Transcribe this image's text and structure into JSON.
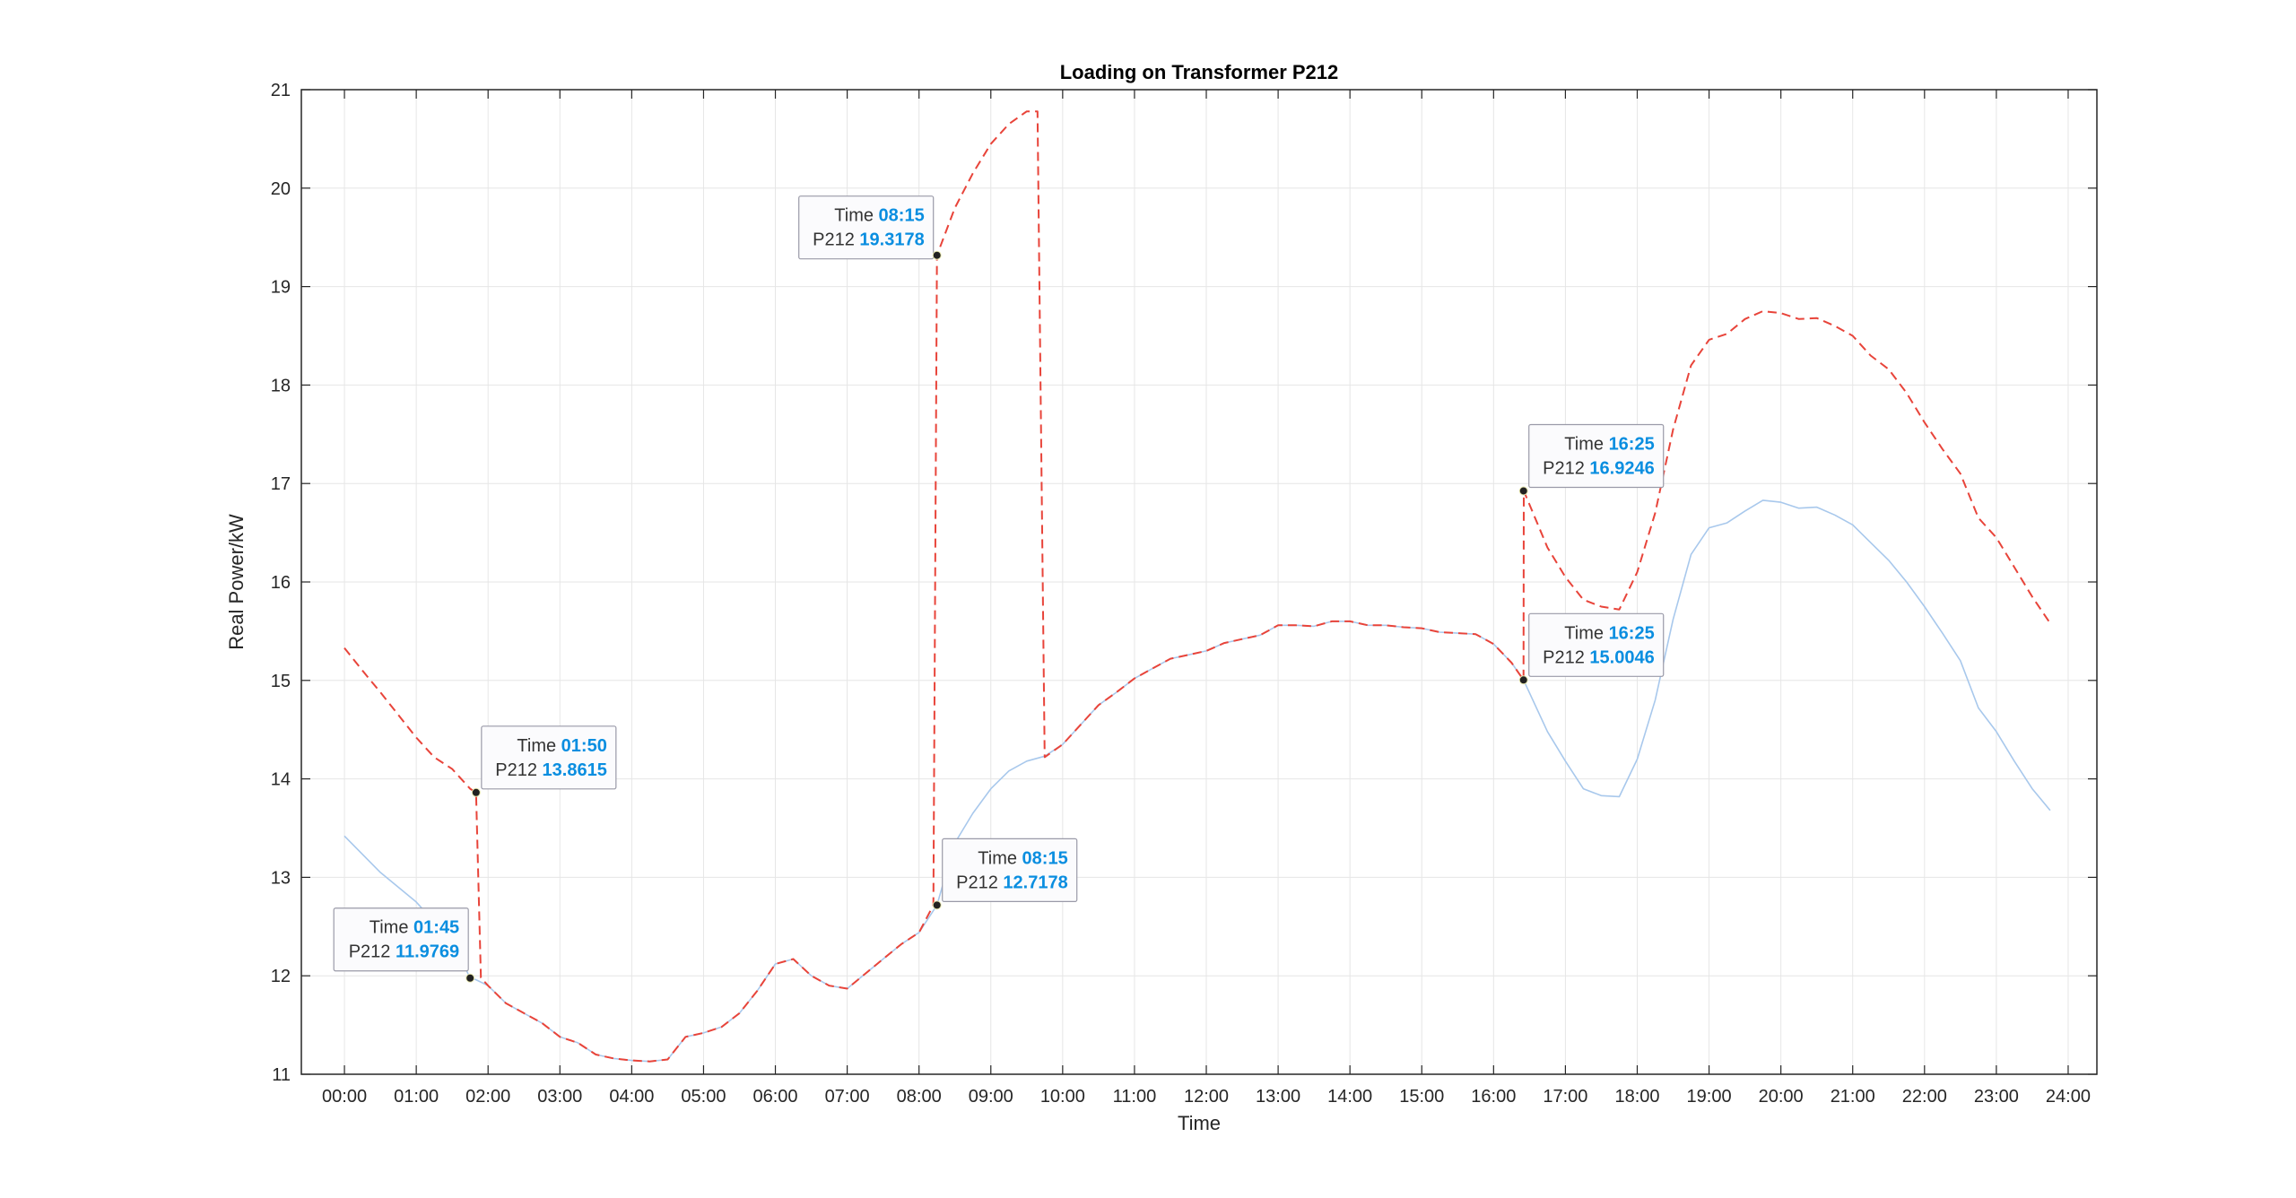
{
  "chart_data": {
    "type": "line",
    "title": "Loading on Transformer P212",
    "xlabel": "Time",
    "ylabel": "Real Power/kW",
    "xlim": [
      -0.6,
      24.4
    ],
    "ylim": [
      11,
      21
    ],
    "x_ticks": [
      0,
      1,
      2,
      3,
      4,
      5,
      6,
      7,
      8,
      9,
      10,
      11,
      12,
      13,
      14,
      15,
      16,
      17,
      18,
      19,
      20,
      21,
      22,
      23,
      24
    ],
    "x_tick_labels": [
      "00:00",
      "01:00",
      "02:00",
      "03:00",
      "04:00",
      "05:00",
      "06:00",
      "07:00",
      "08:00",
      "09:00",
      "10:00",
      "11:00",
      "12:00",
      "13:00",
      "14:00",
      "15:00",
      "16:00",
      "17:00",
      "18:00",
      "19:00",
      "20:00",
      "21:00",
      "22:00",
      "23:00",
      "24:00"
    ],
    "y_ticks": [
      11,
      12,
      13,
      14,
      15,
      16,
      17,
      18,
      19,
      20,
      21
    ],
    "y_tick_labels": [
      "11",
      "12",
      "13",
      "14",
      "15",
      "16",
      "17",
      "18",
      "19",
      "20",
      "21"
    ],
    "grid": true,
    "colors": {
      "base": "#a8c8ec",
      "modified": "#e8443a",
      "tip_value": "#0a8ee0",
      "axis": "#262626",
      "grid": "#e6e6e6"
    },
    "series": [
      {
        "style": "solid",
        "color": "#a8c8ec",
        "x": [
          0,
          0.5,
          1,
          1.5,
          1.75,
          1.833,
          2,
          2.25,
          2.5,
          2.75,
          3,
          3.25,
          3.5,
          3.75,
          4,
          4.25,
          4.5,
          4.75,
          5,
          5.25,
          5.5,
          5.75,
          6,
          6.25,
          6.5,
          6.75,
          7,
          7.25,
          7.5,
          7.75,
          8,
          8.25,
          8.5,
          8.75,
          9,
          9.25,
          9.5,
          9.75,
          10,
          10.25,
          10.5,
          10.75,
          11,
          11.25,
          11.5,
          11.75,
          12,
          12.25,
          12.5,
          12.75,
          13,
          13.25,
          13.5,
          13.75,
          14,
          14.25,
          14.5,
          14.75,
          15,
          15.25,
          15.5,
          15.75,
          16,
          16.25,
          16.417,
          16.75,
          17,
          17.25,
          17.5,
          17.75,
          18,
          18.25,
          18.5,
          18.75,
          19,
          19.25,
          19.5,
          19.75,
          20,
          20.25,
          20.5,
          20.75,
          21,
          21.25,
          21.5,
          21.75,
          22,
          22.25,
          22.5,
          22.75,
          23,
          23.25,
          23.5,
          23.75
        ],
        "y": [
          13.42,
          13.05,
          12.75,
          12.35,
          11.9769,
          11.96,
          11.9,
          11.72,
          11.62,
          11.52,
          11.38,
          11.32,
          11.2,
          11.16,
          11.14,
          11.13,
          11.15,
          11.38,
          11.42,
          11.48,
          11.62,
          11.85,
          12.12,
          12.17,
          12.0,
          11.9,
          11.87,
          12.02,
          12.17,
          12.32,
          12.44,
          12.7178,
          13.35,
          13.65,
          13.9,
          14.08,
          14.18,
          14.23,
          14.35,
          14.55,
          14.75,
          14.88,
          15.02,
          15.12,
          15.22,
          15.26,
          15.3,
          15.38,
          15.42,
          15.46,
          15.56,
          15.56,
          15.55,
          15.6,
          15.6,
          15.56,
          15.56,
          15.54,
          15.53,
          15.49,
          15.48,
          15.47,
          15.37,
          15.18,
          15.0046,
          14.48,
          14.18,
          13.9,
          13.83,
          13.82,
          14.2,
          14.8,
          15.62,
          16.28,
          16.55,
          16.6,
          16.72,
          16.83,
          16.81,
          16.75,
          16.76,
          16.68,
          16.58,
          16.4,
          16.22,
          16.0,
          15.75,
          15.48,
          15.2,
          14.72,
          14.48,
          14.18,
          13.9,
          13.68
        ]
      },
      {
        "style": "dashed",
        "color": "#e8443a",
        "x": [
          0,
          0.25,
          0.5,
          0.75,
          1,
          1.25,
          1.5,
          1.75,
          1.833,
          1.9,
          2,
          2.25,
          2.5,
          2.75,
          3,
          3.25,
          3.5,
          3.75,
          4,
          4.25,
          4.5,
          4.75,
          5,
          5.25,
          5.5,
          5.75,
          6,
          6.25,
          6.5,
          6.75,
          7,
          7.25,
          7.5,
          7.75,
          8,
          8.2,
          8.25,
          8.5,
          8.75,
          9,
          9.25,
          9.5,
          9.65,
          9.75,
          10,
          10.25,
          10.5,
          10.75,
          11,
          11.25,
          11.5,
          11.75,
          12,
          12.25,
          12.5,
          12.75,
          13,
          13.25,
          13.5,
          13.75,
          14,
          14.25,
          14.5,
          14.75,
          15,
          15.25,
          15.5,
          15.75,
          16,
          16.25,
          16.417,
          16.42,
          16.75,
          17,
          17.25,
          17.5,
          17.75,
          18,
          18.25,
          18.5,
          18.75,
          19,
          19.25,
          19.5,
          19.75,
          20,
          20.25,
          20.5,
          20.75,
          21,
          21.25,
          21.5,
          21.75,
          22,
          22.25,
          22.5,
          22.75,
          23,
          23.25,
          23.5,
          23.75
        ],
        "y": [
          15.33,
          15.1,
          14.88,
          14.65,
          14.42,
          14.22,
          14.1,
          13.9,
          13.8615,
          11.98,
          11.9,
          11.72,
          11.62,
          11.52,
          11.38,
          11.32,
          11.2,
          11.16,
          11.14,
          11.13,
          11.15,
          11.38,
          11.42,
          11.48,
          11.62,
          11.85,
          12.12,
          12.17,
          12.0,
          11.9,
          11.87,
          12.02,
          12.17,
          12.32,
          12.44,
          12.7178,
          19.3178,
          19.8,
          20.15,
          20.45,
          20.65,
          20.78,
          20.78,
          14.22,
          14.35,
          14.55,
          14.75,
          14.88,
          15.02,
          15.12,
          15.22,
          15.26,
          15.3,
          15.38,
          15.42,
          15.46,
          15.56,
          15.56,
          15.55,
          15.6,
          15.6,
          15.56,
          15.56,
          15.54,
          15.53,
          15.49,
          15.48,
          15.47,
          15.37,
          15.18,
          15.0046,
          16.9246,
          16.35,
          16.05,
          15.82,
          15.75,
          15.72,
          16.1,
          16.7,
          17.55,
          18.2,
          18.46,
          18.52,
          18.67,
          18.75,
          18.73,
          18.67,
          18.68,
          18.6,
          18.5,
          18.3,
          18.16,
          17.92,
          17.62,
          17.35,
          17.1,
          16.65,
          16.45,
          16.15,
          15.85,
          15.58
        ]
      }
    ],
    "datatips": [
      {
        "x": 1.75,
        "y": 11.9769,
        "time_label": "Time",
        "time_value": "01:45",
        "name_label": "P212",
        "value": "11.9769",
        "side": "left-below"
      },
      {
        "x": 1.833,
        "y": 13.8615,
        "time_label": "Time",
        "time_value": "01:50",
        "name_label": "P212",
        "value": "13.8615",
        "side": "right-above"
      },
      {
        "x": 8.25,
        "y": 19.3178,
        "time_label": "Time",
        "time_value": "08:15",
        "name_label": "P212",
        "value": "19.3178",
        "side": "left-above"
      },
      {
        "x": 8.25,
        "y": 12.7178,
        "time_label": "Time",
        "time_value": "08:15",
        "name_label": "P212",
        "value": "12.7178",
        "side": "right-above"
      },
      {
        "x": 16.417,
        "y": 16.9246,
        "time_label": "Time",
        "time_value": "16:25",
        "name_label": "P212",
        "value": "16.9246",
        "side": "right-above"
      },
      {
        "x": 16.417,
        "y": 15.0046,
        "time_label": "Time",
        "time_value": "16:25",
        "name_label": "P212",
        "value": "15.0046",
        "side": "right-above"
      }
    ]
  }
}
